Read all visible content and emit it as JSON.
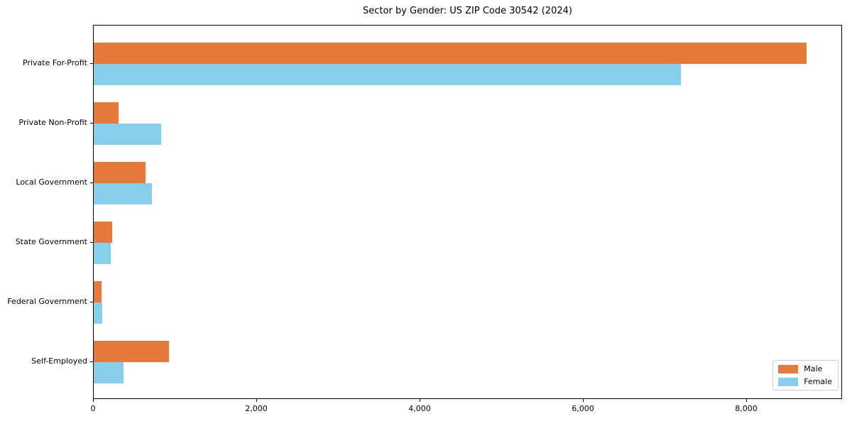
{
  "title": "Sector by Gender: US ZIP Code 30542 (2024)",
  "colors": {
    "male": "#E67A3C",
    "female": "#87CEEB",
    "axis": "#000000",
    "legend_border": "#cccccc",
    "background": "#ffffff"
  },
  "legend": {
    "position": "lower right",
    "items": [
      {
        "label": "Male",
        "color": "#E67A3C"
      },
      {
        "label": "Female",
        "color": "#87CEEB"
      }
    ]
  },
  "chart_data": {
    "type": "bar",
    "orientation": "horizontal",
    "title": "Sector by Gender: US ZIP Code 30542 (2024)",
    "categories": [
      "Private For-Profit",
      "Private Non-Profit",
      "Local Government",
      "State Government",
      "Federal Government",
      "Self-Employed"
    ],
    "series": [
      {
        "name": "Male",
        "color": "#E67A3C",
        "values": [
          8730,
          300,
          635,
          225,
          95,
          920
        ]
      },
      {
        "name": "Female",
        "color": "#87CEEB",
        "values": [
          7190,
          825,
          715,
          210,
          105,
          365
        ]
      }
    ],
    "xlabel": "",
    "ylabel": "",
    "xlim": [
      0,
      9170
    ],
    "x_ticks": [
      {
        "value": 0,
        "label": "0"
      },
      {
        "value": 2000,
        "label": "2,000"
      },
      {
        "value": 4000,
        "label": "4,000"
      },
      {
        "value": 6000,
        "label": "6,000"
      },
      {
        "value": 8000,
        "label": "8,000"
      }
    ],
    "grid": false,
    "legend_position": "lower right"
  }
}
